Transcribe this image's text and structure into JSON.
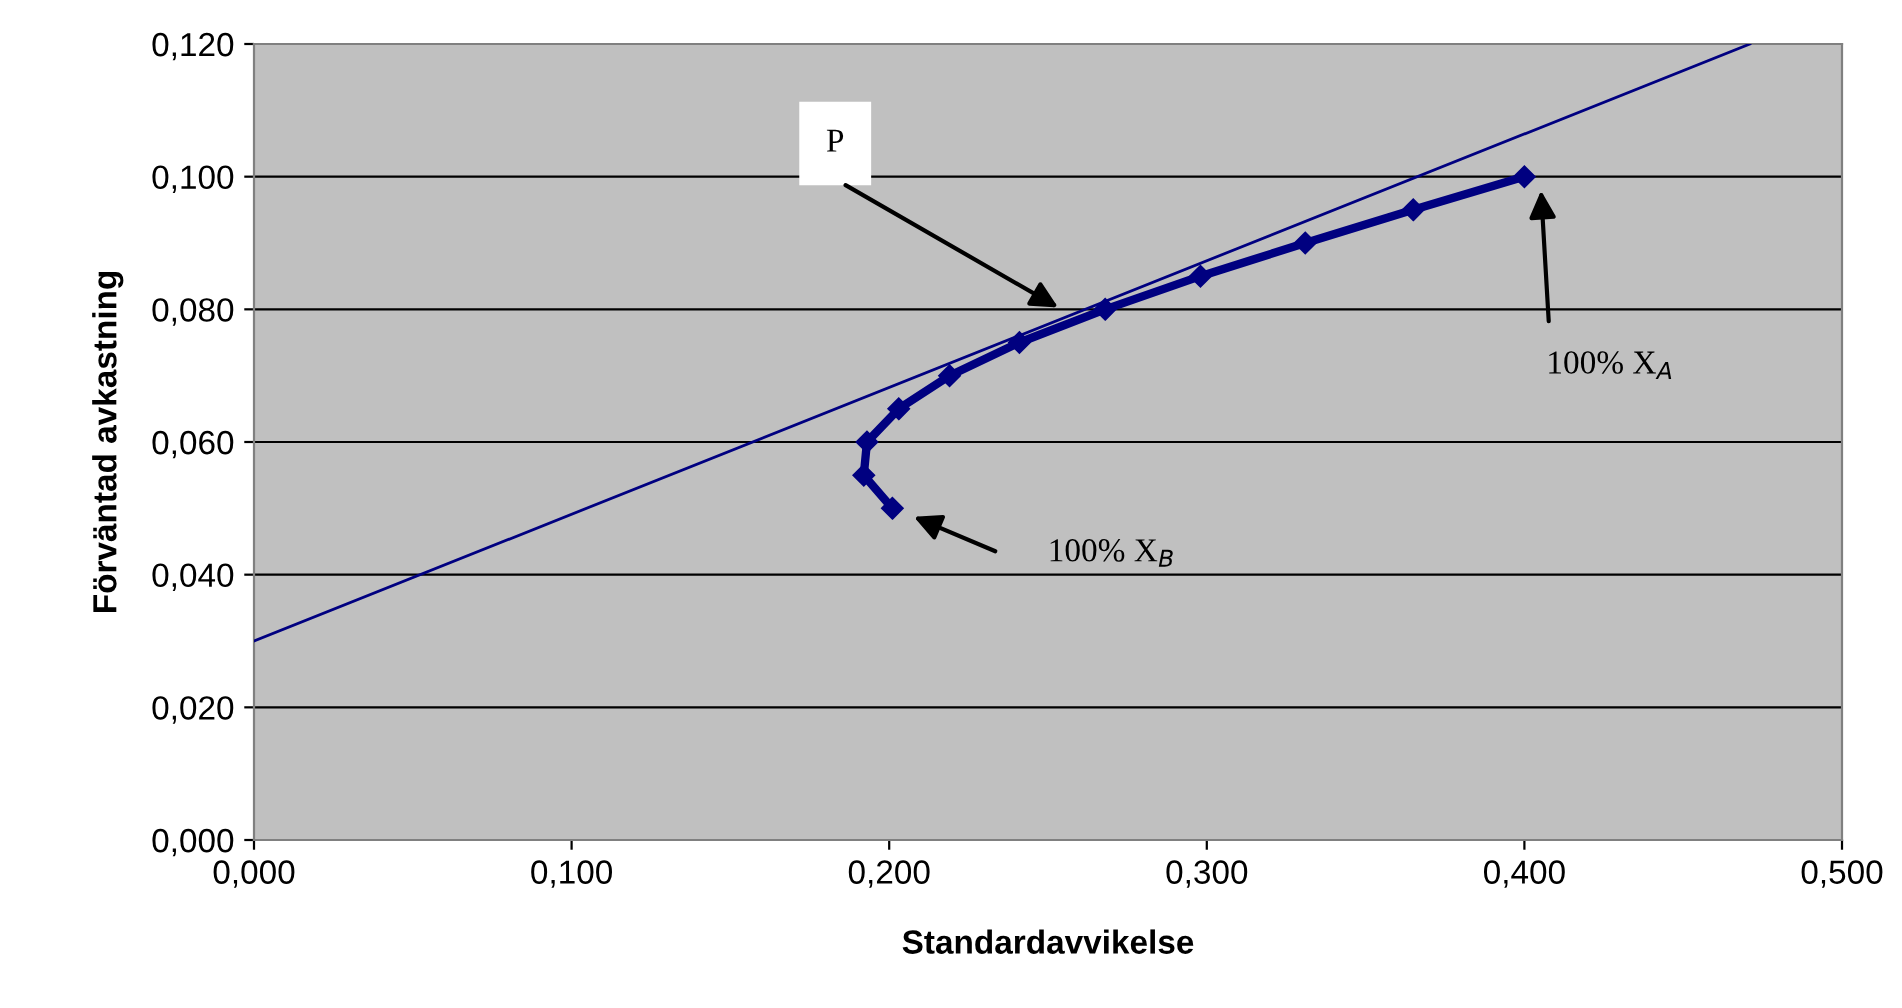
{
  "chart_data": {
    "type": "line",
    "xlabel": "Standardavvikelse",
    "ylabel": "Förväntad avkastning",
    "series": [
      {
        "color": "#000080",
        "marker": "diamond",
        "x": [
          0.201,
          0.192,
          0.193,
          0.203,
          0.219,
          0.241,
          0.268,
          0.298,
          0.331,
          0.365,
          0.4
        ],
        "values": [
          0.05,
          0.055,
          0.06,
          0.065,
          0.07,
          0.075,
          0.08,
          0.085,
          0.09,
          0.095,
          0.1
        ]
      },
      {
        "color": "#000080",
        "marker": "none",
        "x": [
          0,
          0.471
        ],
        "values": [
          0.03,
          0.12
        ]
      }
    ],
    "annotations": [
      "P",
      "100% X$_{A}$",
      "100% X$_{B}$"
    ],
    "xlim": [
      0,
      0.5
    ],
    "ylim": [
      0,
      0.12
    ],
    "xticks": [
      {
        "value": 0,
        "label": "0,000"
      },
      {
        "value": 0.1,
        "label": "0,100"
      },
      {
        "value": 0.2,
        "label": "0,200"
      },
      {
        "value": 0.3,
        "label": "0,300"
      },
      {
        "value": 0.4,
        "label": "0,400"
      },
      {
        "value": 0.5,
        "label": "0,500"
      }
    ],
    "yticks": [
      {
        "value": 0,
        "label": "0,000"
      },
      {
        "value": 0.02,
        "label": "0,020"
      },
      {
        "value": 0.04,
        "label": "0,040"
      },
      {
        "value": 0.06,
        "label": "0,060"
      },
      {
        "value": 0.08,
        "label": "0,080"
      },
      {
        "value": 0.1,
        "label": "0,100"
      },
      {
        "value": 0.12,
        "label": "0,120"
      }
    ],
    "grid": "y",
    "legend": false
  }
}
